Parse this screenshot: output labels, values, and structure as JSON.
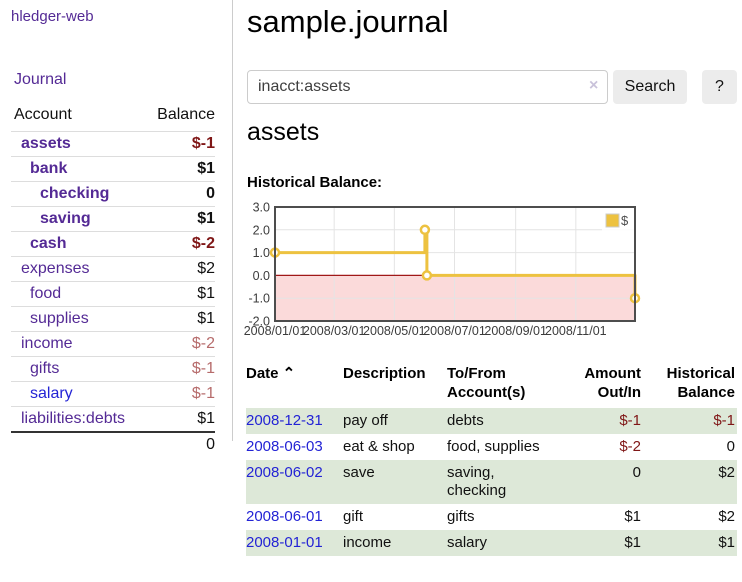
{
  "app": {
    "brand": "hledger-web",
    "nav": {
      "journal": "Journal"
    }
  },
  "sidebar": {
    "header": {
      "account": "Account",
      "balance": "Balance"
    },
    "accounts": [
      {
        "name": "assets",
        "depth": 0,
        "balance": "$-1",
        "bold": true,
        "neg": "strong"
      },
      {
        "name": "bank",
        "depth": 1,
        "balance": "$1",
        "bold": true,
        "neg": "none"
      },
      {
        "name": "checking",
        "depth": 2,
        "balance": "0",
        "bold": true,
        "neg": "none"
      },
      {
        "name": "saving",
        "depth": 2,
        "balance": "$1",
        "bold": true,
        "neg": "none"
      },
      {
        "name": "cash",
        "depth": 1,
        "balance": "$-2",
        "bold": true,
        "neg": "strong"
      },
      {
        "name": "expenses",
        "depth": 0,
        "balance": "$2",
        "bold": false,
        "neg": "none"
      },
      {
        "name": "food",
        "depth": 1,
        "balance": "$1",
        "bold": false,
        "neg": "none"
      },
      {
        "name": "supplies",
        "depth": 1,
        "balance": "$1",
        "bold": false,
        "neg": "none"
      },
      {
        "name": "income",
        "depth": 0,
        "balance": "$-2",
        "bold": false,
        "neg": "muted"
      },
      {
        "name": "gifts",
        "depth": 1,
        "balance": "$-1",
        "bold": false,
        "neg": "muted"
      },
      {
        "name": "salary",
        "depth": 1,
        "balance": "$-1",
        "bold": false,
        "neg": "muted",
        "blue": true
      },
      {
        "name": "liabilities:debts",
        "depth": 0,
        "balance": "$1",
        "bold": false,
        "neg": "none"
      }
    ],
    "total": "0"
  },
  "main": {
    "title": "sample.journal",
    "search": {
      "value": "inacct:assets",
      "clear_icon": "×",
      "button": "Search",
      "help": "?"
    },
    "account_heading": "assets",
    "chart_label": "Historical Balance:"
  },
  "chart_data": {
    "type": "line",
    "title": "Historical Balance:",
    "step": true,
    "x_start": "2008-01-01",
    "x_end": "2008-12-31",
    "ylim": [
      -2,
      3
    ],
    "yticks": [
      "3.0",
      "2.0",
      "1.0",
      "0.0",
      "-1.0",
      "-2.0"
    ],
    "xticks": [
      "2008/01/01",
      "2008/03/01",
      "2008/05/01",
      "2008/07/01",
      "2008/09/01",
      "2008/11/01"
    ],
    "series": [
      {
        "name": "$",
        "color": "#edc240",
        "points": [
          {
            "date": "2008-01-01",
            "value": 1
          },
          {
            "date": "2008-06-01",
            "value": 2
          },
          {
            "date": "2008-06-03",
            "value": 0
          },
          {
            "date": "2008-12-31",
            "value": -1
          }
        ]
      }
    ],
    "legend": {
      "label": "$",
      "position": "top-right"
    },
    "grid": true,
    "negative_fill": "#fbdada",
    "zero_line_color": "#a01818"
  },
  "register": {
    "columns": [
      {
        "label": "Date",
        "sort_indicator": "⌃",
        "align": "left"
      },
      {
        "label": "Description",
        "align": "left"
      },
      {
        "label": "To/From Account(s)",
        "align": "left"
      },
      {
        "label": "Amount Out/In",
        "align": "right"
      },
      {
        "label": "Historical Balance",
        "align": "right"
      }
    ],
    "rows": [
      {
        "date": "2008-12-31",
        "description": "pay off",
        "accounts": "debts",
        "amount": "$-1",
        "balance": "$-1",
        "amount_neg": true,
        "balance_neg": true
      },
      {
        "date": "2008-06-03",
        "description": "eat & shop",
        "accounts": "food, supplies",
        "amount": "$-2",
        "balance": "0",
        "amount_neg": true,
        "balance_neg": false
      },
      {
        "date": "2008-06-02",
        "description": "save",
        "accounts": "saving,\nchecking",
        "amount": "0",
        "balance": "$2",
        "amount_neg": false,
        "balance_neg": false
      },
      {
        "date": "2008-06-01",
        "description": "gift",
        "accounts": "gifts",
        "amount": "$1",
        "balance": "$2",
        "amount_neg": false,
        "balance_neg": false
      },
      {
        "date": "2008-01-01",
        "description": "income",
        "accounts": "salary",
        "amount": "$1",
        "balance": "$1",
        "amount_neg": false,
        "balance_neg": false
      }
    ]
  },
  "colors": {
    "purple": "#542a95",
    "blue": "#2323d5",
    "darkred": "#7f1616",
    "rosered": "#b66b6b",
    "row_green": "#dde8d8",
    "gold": "#edc240",
    "pink": "#fbdada",
    "zero_red": "#a01818",
    "grid": "#e4e4e4",
    "plot_border": "#4d4d4d",
    "axis_text": "#3c3c3c"
  }
}
